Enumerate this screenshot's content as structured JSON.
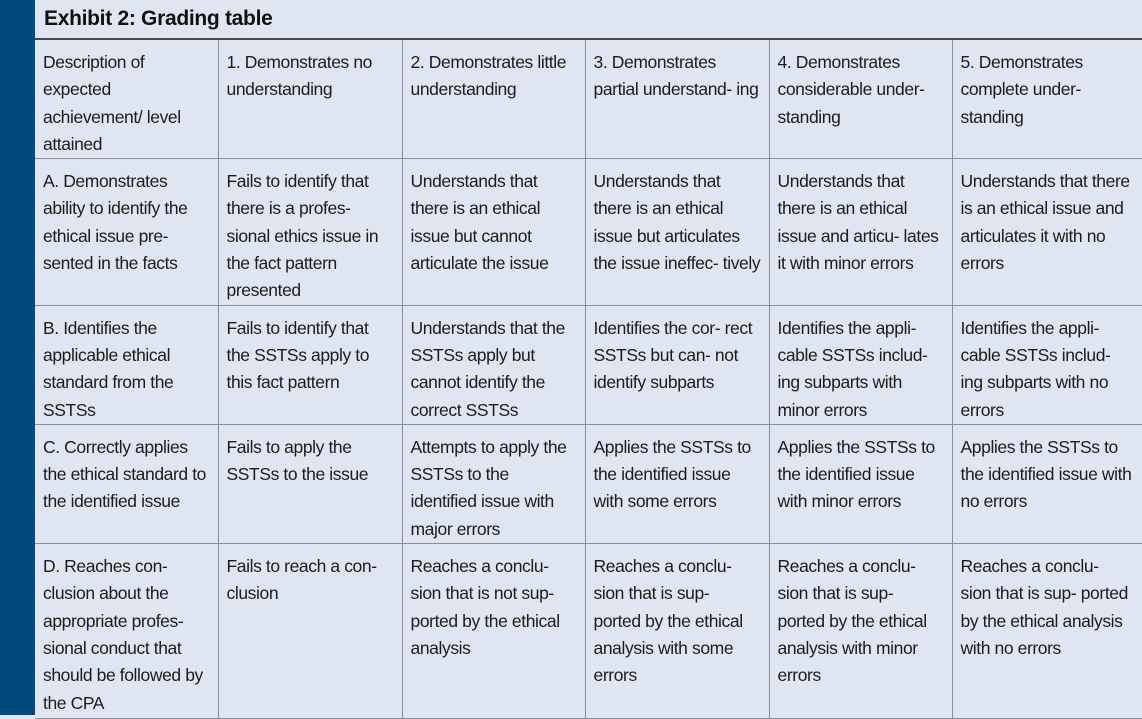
{
  "exhibit": {
    "title": "Exhibit 2: Grading table"
  },
  "colors": {
    "side_bar": "#004a7c",
    "table_background": "#dfe6f1",
    "border": "#8a8f99"
  },
  "table": {
    "header": [
      "Description of expected achievement/ level attained",
      "1. Demonstrates no understanding",
      "2. Demonstrates little understanding",
      "3. Demonstrates partial understand- ing",
      "4. Demonstrates considerable under- standing",
      "5. Demonstrates complete under- standing"
    ],
    "rows": [
      [
        "A. Demonstrates ability to identify the ethical issue pre- sented in the facts",
        "Fails to identify that there is a profes- sional ethics issue in the fact pattern presented",
        "Understands that there is an ethical issue but cannot articulate the issue",
        "Understands that there is an ethical issue but articulates the issue ineffec- tively",
        "Understands that there is an ethical issue and articu- lates it with minor errors",
        "Understands that there is an ethical issue and articulates it with no errors"
      ],
      [
        "B. Identifies the applicable ethical standard from the SSTSs",
        "Fails to identify that the SSTSs apply to this fact pattern",
        "Understands that the SSTSs apply but cannot identify the correct SSTSs",
        "Identifies the cor- rect SSTSs but can- not identify subparts",
        "Identifies the appli- cable SSTSs includ- ing subparts with minor errors",
        "Identifies the appli- cable SSTSs includ- ing subparts with no errors"
      ],
      [
        "C. Correctly applies the ethical standard to the identified issue",
        "Fails to apply the SSTSs to the issue",
        "Attempts to apply the SSTSs to the identified issue with major errors",
        "Applies the SSTSs to the identified issue with some errors",
        "Applies the SSTSs to the identified issue with minor errors",
        "Applies the SSTSs to the identified issue with no errors"
      ],
      [
        "D. Reaches con- clusion about the appropriate profes- sional conduct that should be followed by the CPA",
        "Fails to reach a con- clusion",
        "Reaches a conclu- sion that is not sup- ported by the ethical analysis",
        "Reaches a conclu- sion that is sup- ported by the ethical analysis with some errors",
        "Reaches a conclu- sion that is sup- ported by the ethical analysis with minor errors",
        "Reaches a conclu- sion that is sup- ported by the ethical analysis with no errors"
      ]
    ]
  }
}
